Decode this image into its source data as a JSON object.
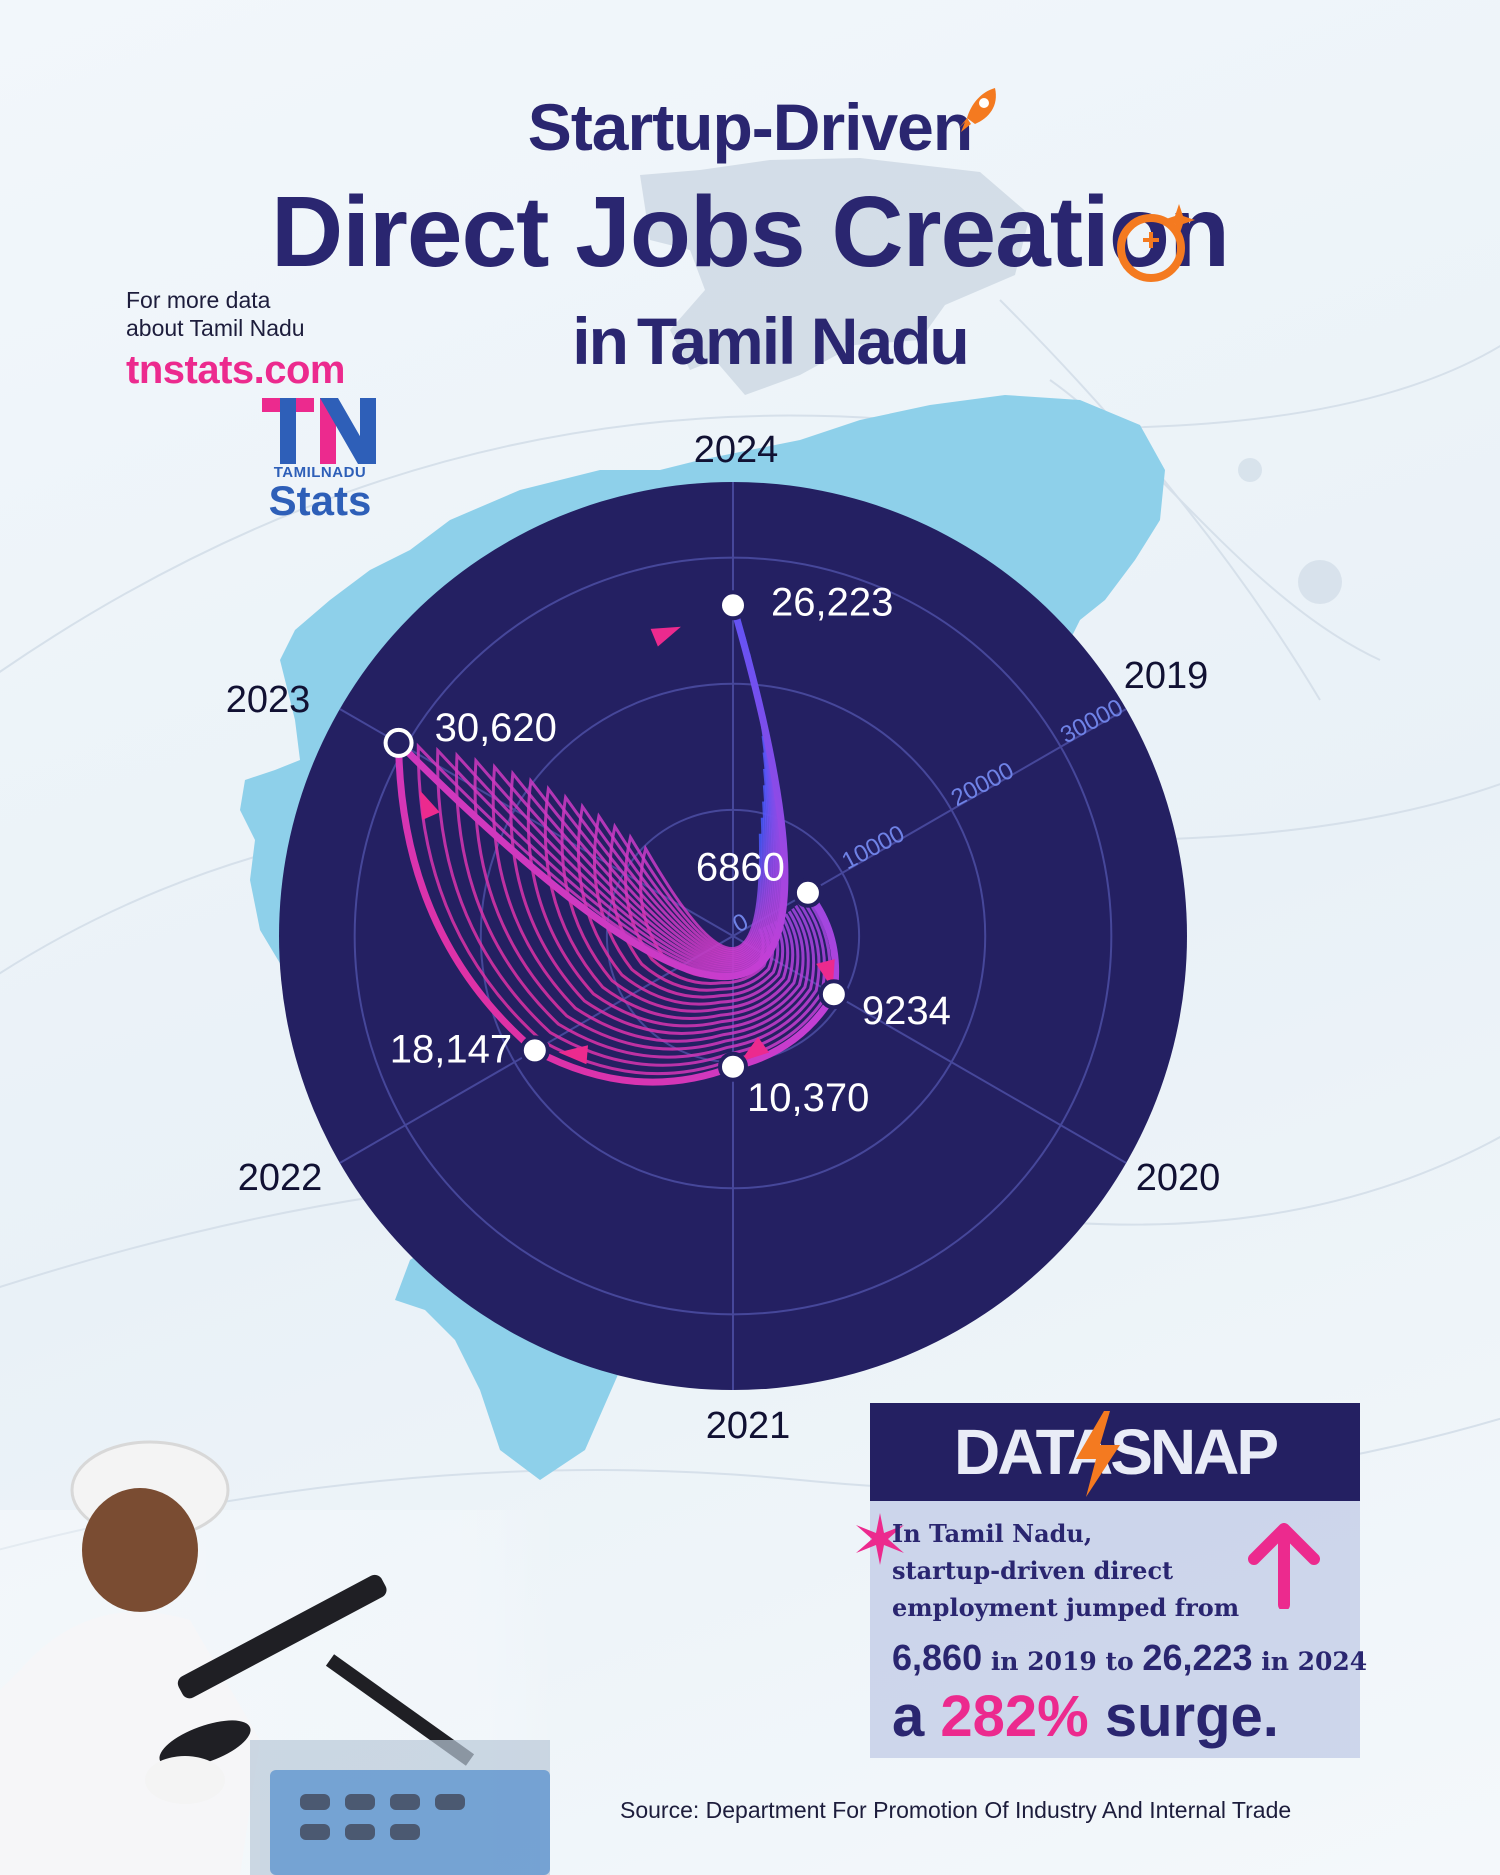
{
  "title": {
    "line1": "Startup-Driven",
    "line2": "Direct Jobs Creation",
    "line3_prefix": "in",
    "line3_main": "Tamil Nadu"
  },
  "brand": {
    "note_line1": "For more data",
    "note_line2": "about Tamil Nadu",
    "url": "tnstats.com",
    "logo_mark": "TN",
    "logo_subtitle": "TAMILNADU",
    "logo_word": "Stats"
  },
  "colors": {
    "navy": "#242062",
    "pink": "#ec2a8e",
    "blue": "#3f5bff",
    "map_blue": "#8ed0ea",
    "title": "#2a2670"
  },
  "chart_data": {
    "type": "polar-radial-line",
    "categories": [
      "2019",
      "2020",
      "2021",
      "2022",
      "2023",
      "2024"
    ],
    "values": [
      6860,
      9234,
      10370,
      18147,
      30620,
      26223
    ],
    "value_labels": [
      "6860",
      "9234",
      "10,370",
      "18,147",
      "30,620",
      "26,223"
    ],
    "radial_ticks": [
      "0",
      "10000",
      "20000",
      "30000"
    ],
    "radial_range": [
      0,
      36000
    ],
    "grid": true
  },
  "datasnap": {
    "title": "DATASNAP",
    "line1": "In Tamil Nadu,",
    "line2": "startup-driven direct",
    "line3": "employment jumped from",
    "v_start": "6,860",
    "t_in1": "in 2019 to",
    "v_end": "26,223",
    "t_in2": "in 2024",
    "prefix": "a",
    "pct": "282%",
    "suffix": "surge."
  },
  "source": "Source: Department For Promotion Of Industry And Internal Trade"
}
